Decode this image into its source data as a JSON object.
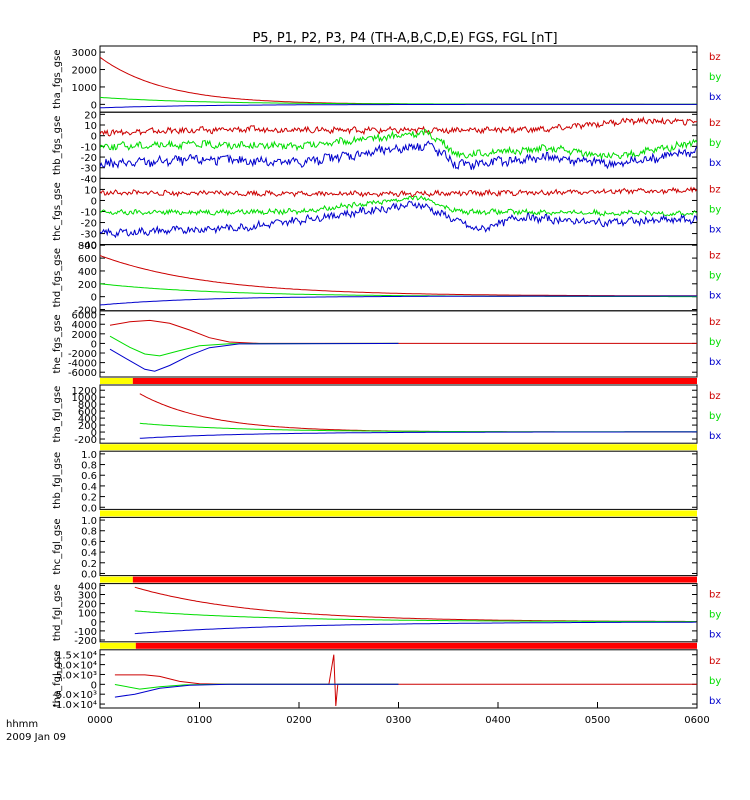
{
  "title": "P5, P1, P2, P3, P4 (TH-A,B,C,D,E) FGS, FGL [nT]",
  "footer": {
    "axis_label": "hhmm",
    "date": "2009 Jan 09"
  },
  "colors": {
    "bx": "#0000cc",
    "by": "#00dd00",
    "bz": "#cc0000",
    "bar_yellow": "#ffff00",
    "bar_red": "#ff0000"
  },
  "chart_data": {
    "type": "line",
    "x_ticks": [
      "0000",
      "0100",
      "0200",
      "0300",
      "0400",
      "0500",
      "0600"
    ],
    "panels": [
      {
        "ylabel": "tha_fgs_gse",
        "yticks": [
          "3000",
          "2000",
          "1000",
          "0"
        ],
        "tick_values": [
          3000,
          2000,
          1000,
          0
        ],
        "ylim": [
          -450,
          3350
        ],
        "legend": [
          "bz",
          "by",
          "bx"
        ],
        "series": [
          {
            "name": "bz",
            "kind": "decay",
            "start": 2700,
            "end": 0,
            "tau": 0.65,
            "t_end": 6
          },
          {
            "name": "by",
            "kind": "decay",
            "start": 400,
            "end": 10,
            "tau": 1.0,
            "t_end": 6
          },
          {
            "name": "bx",
            "kind": "decay",
            "start": -200,
            "end": 0,
            "tau": 1.0,
            "t_end": 6
          }
        ]
      },
      {
        "ylabel": "thb_fgs_gse",
        "yticks": [
          "20",
          "10",
          "0",
          "-10",
          "-20",
          "-30",
          "-40"
        ],
        "tick_values": [
          20,
          10,
          0,
          -10,
          -20,
          -30,
          -40
        ],
        "ylim": [
          -40,
          22
        ],
        "legend": [
          "bz",
          "by",
          "bx"
        ],
        "series": [
          {
            "name": "bz",
            "kind": "noise",
            "base": [
              [
                0,
                3
              ],
              [
                1.5,
                6
              ],
              [
                3,
                5
              ],
              [
                4.5,
                6
              ],
              [
                5.3,
                14
              ],
              [
                6,
                13
              ]
            ],
            "amp": 2.5
          },
          {
            "name": "by",
            "kind": "noise",
            "base": [
              [
                0,
                -10
              ],
              [
                1,
                -8
              ],
              [
                2,
                -10
              ],
              [
                3.3,
                3
              ],
              [
                3.6,
                -18
              ],
              [
                4.5,
                -12
              ],
              [
                5.2,
                -20
              ],
              [
                6,
                -6
              ]
            ],
            "amp": 3
          },
          {
            "name": "bx",
            "kind": "noise",
            "base": [
              [
                0,
                -27
              ],
              [
                1,
                -22
              ],
              [
                2,
                -25
              ],
              [
                3.3,
                -8
              ],
              [
                3.6,
                -28
              ],
              [
                4.5,
                -20
              ],
              [
                5.2,
                -27
              ],
              [
                6,
                -14
              ]
            ],
            "amp": 4
          }
        ]
      },
      {
        "ylabel": "thc_fgs_gse",
        "yticks": [
          "10",
          "0",
          "-10",
          "-20",
          "-30",
          "-40"
        ],
        "tick_values": [
          10,
          0,
          -10,
          -20,
          -30,
          -40
        ],
        "ylim": [
          -40,
          20
        ],
        "legend": [
          "bz",
          "by",
          "bx"
        ],
        "series": [
          {
            "name": "bz",
            "kind": "noise",
            "base": [
              [
                0,
                7
              ],
              [
                3,
                6
              ],
              [
                4.3,
                7
              ],
              [
                6,
                9
              ]
            ],
            "amp": 2
          },
          {
            "name": "by",
            "kind": "noise",
            "base": [
              [
                0,
                -11
              ],
              [
                2,
                -10
              ],
              [
                3.2,
                3
              ],
              [
                3.6,
                -10
              ],
              [
                6,
                -12
              ]
            ],
            "amp": 2
          },
          {
            "name": "bx",
            "kind": "noise",
            "base": [
              [
                0,
                -30
              ],
              [
                1.5,
                -24
              ],
              [
                3.2,
                -3
              ],
              [
                3.8,
                -27
              ],
              [
                4.2,
                -15
              ],
              [
                5,
                -20
              ],
              [
                6,
                -17
              ]
            ],
            "amp": 3
          }
        ]
      },
      {
        "ylabel": "thd_fgs_gse",
        "yticks": [
          "800",
          "600",
          "400",
          "200",
          "0",
          "-200"
        ],
        "tick_values": [
          800,
          600,
          400,
          200,
          0,
          -200
        ],
        "ylim": [
          -220,
          810
        ],
        "legend": [
          "bz",
          "by",
          "bx"
        ],
        "series": [
          {
            "name": "bz",
            "kind": "decay",
            "start": 640,
            "end": 10,
            "tau": 1.1,
            "t_end": 6
          },
          {
            "name": "by",
            "kind": "decay",
            "start": 200,
            "end": 0,
            "tau": 1.2,
            "t_end": 6
          },
          {
            "name": "bx",
            "kind": "decay",
            "start": -130,
            "end": 10,
            "tau": 1.0,
            "t_end": 6
          }
        ]
      },
      {
        "ylabel": "the_fgs_gse",
        "yticks": [
          "6000",
          "4000",
          "2000",
          "0",
          "-2000",
          "-4000",
          "-6000"
        ],
        "tick_values": [
          6000,
          4000,
          2000,
          0,
          -2000,
          -4000,
          -6000
        ],
        "ylim": [
          -7000,
          6800
        ],
        "legend": [
          "bz",
          "by",
          "bx"
        ],
        "series": [
          {
            "name": "bz",
            "kind": "points",
            "data": [
              [
                0.1,
                3800
              ],
              [
                0.3,
                4500
              ],
              [
                0.5,
                4800
              ],
              [
                0.7,
                4200
              ],
              [
                0.9,
                2800
              ],
              [
                1.1,
                1200
              ],
              [
                1.3,
                300
              ],
              [
                1.6,
                0
              ],
              [
                6,
                0
              ]
            ]
          },
          {
            "name": "by",
            "kind": "points",
            "data": [
              [
                0.1,
                1500
              ],
              [
                0.3,
                -800
              ],
              [
                0.45,
                -2200
              ],
              [
                0.6,
                -2600
              ],
              [
                0.8,
                -1500
              ],
              [
                1,
                -500
              ],
              [
                1.3,
                -50
              ],
              [
                3,
                0
              ]
            ]
          },
          {
            "name": "bx",
            "kind": "points",
            "data": [
              [
                0.1,
                -1200
              ],
              [
                0.3,
                -3600
              ],
              [
                0.45,
                -5400
              ],
              [
                0.55,
                -5800
              ],
              [
                0.7,
                -4600
              ],
              [
                0.9,
                -2500
              ],
              [
                1.1,
                -900
              ],
              [
                1.4,
                -100
              ],
              [
                3,
                0
              ]
            ]
          }
        ]
      },
      {
        "ylabel": "tha_fgl_gse",
        "yticks": [
          "1200",
          "1000",
          "800",
          "600",
          "400",
          "200",
          "0",
          "-200"
        ],
        "tick_values": [
          1200,
          1000,
          800,
          600,
          400,
          200,
          0,
          -200
        ],
        "ylim": [
          -320,
          1350
        ],
        "legend": [
          "bz",
          "by",
          "bx"
        ],
        "quality_bar": [
          [
            "#ffff00",
            0,
            0.33
          ],
          [
            "#ff0000",
            0.33,
            6
          ]
        ],
        "series": [
          {
            "name": "bz",
            "kind": "decay",
            "start": 1100,
            "end": 0,
            "tau": 0.7,
            "t0": 0.4,
            "t_end": 6
          },
          {
            "name": "by",
            "kind": "decay",
            "start": 250,
            "end": 5,
            "tau": 1.0,
            "t0": 0.4,
            "t_end": 6
          },
          {
            "name": "bx",
            "kind": "decay",
            "start": -180,
            "end": 5,
            "tau": 1.1,
            "t0": 0.4,
            "t_end": 6
          }
        ]
      },
      {
        "ylabel": "thb_fgl_gse",
        "yticks": [
          "1.0",
          "0.8",
          "0.6",
          "0.4",
          "0.2",
          "0.0"
        ],
        "tick_values": [
          1,
          0.8,
          0.6,
          0.4,
          0.2,
          0
        ],
        "ylim": [
          -0.04,
          1.05
        ],
        "legend": [],
        "quality_bar": [
          [
            "#ffff00",
            0,
            6
          ]
        ],
        "series": []
      },
      {
        "ylabel": "thc_fgl_gse",
        "yticks": [
          "1.0",
          "0.8",
          "0.6",
          "0.4",
          "0.2",
          "0.0"
        ],
        "tick_values": [
          1,
          0.8,
          0.6,
          0.4,
          0.2,
          0
        ],
        "ylim": [
          -0.04,
          1.05
        ],
        "legend": [],
        "quality_bar": [
          [
            "#ffff00",
            0,
            6
          ]
        ],
        "series": []
      },
      {
        "ylabel": "thd_fgl_gse",
        "yticks": [
          "400",
          "300",
          "200",
          "100",
          "0",
          "-100",
          "-200"
        ],
        "tick_values": [
          400,
          300,
          200,
          100,
          0,
          -100,
          -200
        ],
        "ylim": [
          -220,
          420
        ],
        "legend": [
          "bz",
          "by",
          "bx"
        ],
        "quality_bar": [
          [
            "#ffff00",
            0,
            0.33
          ],
          [
            "#ff0000",
            0.33,
            6
          ]
        ],
        "series": [
          {
            "name": "bz",
            "kind": "decay",
            "start": 380,
            "end": 0,
            "tau": 1.2,
            "t0": 0.35,
            "t_end": 6
          },
          {
            "name": "by",
            "kind": "decay",
            "start": 120,
            "end": 0,
            "tau": 1.4,
            "t0": 0.35,
            "t_end": 6
          },
          {
            "name": "bx",
            "kind": "decay",
            "start": -130,
            "end": 0,
            "tau": 1.6,
            "t0": 0.35,
            "t_end": 6
          }
        ]
      },
      {
        "ylabel": "the_fgl_gse",
        "yticks": [
          "1.5×10⁴",
          "1.0×10⁴",
          "5.0×10³",
          "0",
          "-5.0×10³",
          "-1.0×10⁴"
        ],
        "tick_values": [
          15000,
          10000,
          5000,
          0,
          -5000,
          -10000
        ],
        "ylim": [
          -12000,
          17500
        ],
        "legend": [
          "bz",
          "by",
          "bx"
        ],
        "quality_bar": [
          [
            "#ffff00",
            0,
            0.36
          ],
          [
            "#ff0000",
            0.36,
            6
          ]
        ],
        "series": [
          {
            "name": "bz",
            "kind": "points",
            "data": [
              [
                0.15,
                4800
              ],
              [
                0.45,
                4800
              ],
              [
                0.6,
                4000
              ],
              [
                0.8,
                1500
              ],
              [
                1,
                300
              ],
              [
                1.3,
                0
              ],
              [
                2.3,
                0
              ],
              [
                2.35,
                15000
              ],
              [
                2.37,
                -11000
              ],
              [
                2.39,
                0
              ],
              [
                6,
                0
              ]
            ]
          },
          {
            "name": "by",
            "kind": "points",
            "data": [
              [
                0.15,
                -100
              ],
              [
                0.4,
                -2400
              ],
              [
                0.6,
                -1200
              ],
              [
                0.85,
                -300
              ],
              [
                1.2,
                0
              ],
              [
                3,
                0
              ]
            ]
          },
          {
            "name": "bx",
            "kind": "points",
            "data": [
              [
                0.15,
                -6500
              ],
              [
                0.35,
                -5000
              ],
              [
                0.6,
                -2000
              ],
              [
                0.9,
                -500
              ],
              [
                1.3,
                0
              ],
              [
                3,
                0
              ]
            ]
          }
        ]
      }
    ]
  }
}
